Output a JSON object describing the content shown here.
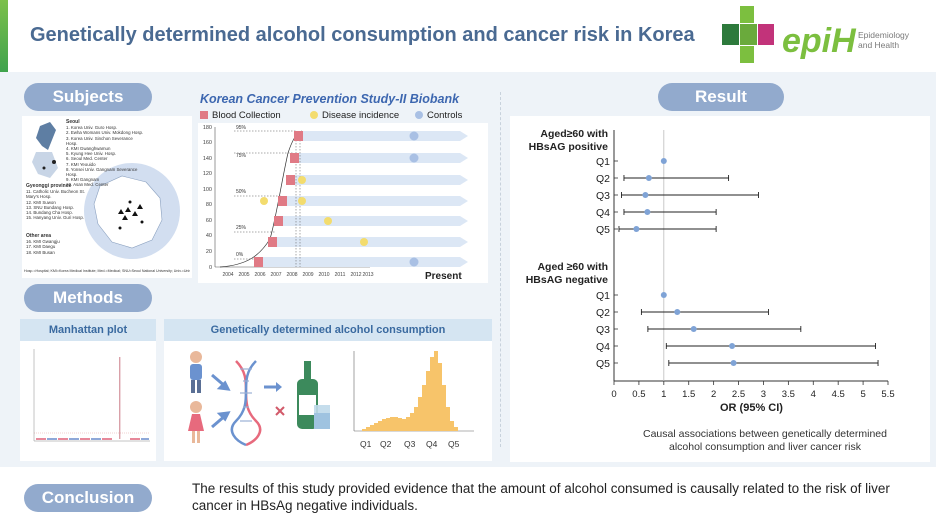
{
  "header": {
    "title": "Genetically determined alcohol consumption and cancer risk in Korea",
    "logo_text": "epiH",
    "logo_sub_1": "Epidemiology",
    "logo_sub_2": "and Health"
  },
  "sections": {
    "subjects": "Subjects",
    "methods": "Methods",
    "result": "Result",
    "conclusion": "Conclusion"
  },
  "biobank": {
    "title": "Korean Cancer Prevention Study-II Biobank",
    "legend": [
      "Blood Collection",
      "Disease incidence",
      "Controls"
    ],
    "present_label": "Present",
    "y_ticks": [
      "180",
      "160",
      "140",
      "120",
      "100",
      "80",
      "60",
      "40",
      "20",
      "0"
    ],
    "x_ticks": [
      "2004",
      "2005",
      "2006",
      "2007",
      "2008",
      "2009",
      "2010",
      "2011",
      "2012",
      "2013"
    ],
    "pct_labels": [
      "95%",
      "75%",
      "50%",
      "25%",
      "0%"
    ]
  },
  "map": {
    "seoul_title": "Seoul",
    "seoul_items": [
      "1. Korea Univ. Guro Hosp.",
      "2. Ewha Womans Univ. Mokdong Hosp.",
      "3. Korea Univ. Sinchon Severance Hosp.",
      "4. KMI Gwanghwamun",
      "5. Kyung Hee Univ. Hosp.",
      "6. Seoul Med. Center",
      "7. KMI Yeouido",
      "8. Yonsei Univ. Gangnam Severance Hosp.",
      "9. KMI Gangnam",
      "10. Asan Med. Center"
    ],
    "gyeonggi_title": "Gyeonggi province",
    "gyeonggi_items": [
      "11. Catholic Univ. Bucheon St. Mary's Hosp.",
      "12. KMI Suwon",
      "13. SNU Bundang Hosp.",
      "14. Bundang Cha Hosp.",
      "15. Hanyang Univ. Guri Hosp."
    ],
    "other_title": "Other area",
    "other_items": [
      "16. KMI Gwangju",
      "17. KMI Daegu",
      "18. KMI Busan"
    ],
    "footnote": "Hosp.=Hospital; KMI=Korea Medical Institute; Med.=Medical; SNU=Seoul National University; Univ.=University"
  },
  "methods": {
    "tab_manhattan": "Manhattan plot",
    "tab_alcohol": "Genetically determined alcohol consumption",
    "quintiles": [
      "Q1",
      "Q2",
      "Q3",
      "Q4",
      "Q5"
    ]
  },
  "chart_data": {
    "type": "forest",
    "xlabel": "OR (95% CI)",
    "xlim": [
      0,
      5.5
    ],
    "x_ticks": [
      "0",
      "0.5",
      "1",
      "1.5",
      "2",
      "2.5",
      "3",
      "3.5",
      "4",
      "4.5",
      "5",
      "5.5"
    ],
    "reference_line": 1,
    "groups": [
      {
        "name_line1": "Aged≥60 with",
        "name_line2": "HBsAG positive",
        "rows": [
          {
            "label": "Q1",
            "or": 1.0,
            "lo": 1.0,
            "hi": 1.0
          },
          {
            "label": "Q2",
            "or": 0.7,
            "lo": 0.2,
            "hi": 2.3
          },
          {
            "label": "Q3",
            "or": 0.63,
            "lo": 0.15,
            "hi": 2.9
          },
          {
            "label": "Q4",
            "or": 0.67,
            "lo": 0.2,
            "hi": 2.05
          },
          {
            "label": "Q5",
            "or": 0.45,
            "lo": 0.1,
            "hi": 2.05
          }
        ]
      },
      {
        "name_line1": "Aged ≥60 with",
        "name_line2": "HBsAG negative",
        "rows": [
          {
            "label": "Q1",
            "or": 1.0,
            "lo": 1.0,
            "hi": 1.0
          },
          {
            "label": "Q2",
            "or": 1.27,
            "lo": 0.55,
            "hi": 3.1
          },
          {
            "label": "Q3",
            "or": 1.6,
            "lo": 0.68,
            "hi": 3.75
          },
          {
            "label": "Q4",
            "or": 2.37,
            "lo": 1.05,
            "hi": 5.25
          },
          {
            "label": "Q5",
            "or": 2.4,
            "lo": 1.1,
            "hi": 5.3
          }
        ]
      }
    ],
    "caption_line1": "Causal associations between genetically determined",
    "caption_line2": "alcohol consumption and liver cancer risk"
  },
  "conclusion_text": "The results of this study provided evidence that the amount of alcohol consumed is causally related to the risk of liver cancer in HBsAg negative individuals.",
  "colors": {
    "blood": "#e07a85",
    "disease": "#f3dc6e",
    "controls": "#a9c0e4",
    "pill": "#92aacd",
    "title": "#4a6a92",
    "accent_green": "#7cbf3f",
    "accent_pink": "#c2337a"
  }
}
